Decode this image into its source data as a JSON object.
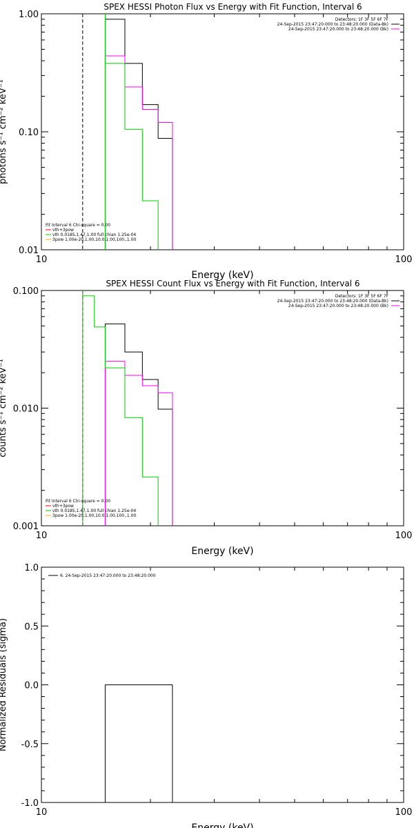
{
  "chart_data": [
    {
      "type": "line",
      "title": "SPEX HESSI Photon Flux vs Energy with Fit Function, Interval 6",
      "xlabel": "Energy (keV)",
      "ylabel": "photons s⁻¹ cm⁻² keV⁻¹",
      "xscale": "log",
      "yscale": "log",
      "xlim": [
        10,
        100
      ],
      "ylim": [
        0.01,
        1.0
      ],
      "xticks": [
        "10",
        "100"
      ],
      "yticks": [
        "0.01",
        "0.10",
        "1.00"
      ],
      "grid": false,
      "threshold_line_x": 13,
      "legend_top_right": [
        "Detectors: 1F 3F 5F 6F 7F",
        "24-Sep-2015 23:47:20.000 to 23:48:20.000 (Data-Bk)",
        "24-Sep-2015 23:47:20.000 to 23:48:20.000 (Bk)"
      ],
      "legend_bottom_left": [
        "Fit Interval 6   Chi-square = 0.00",
        "vth+3pow",
        "vth 0.0185,1.47,1.00  full chian 1.25e-04",
        "3pow 1.00e-20,1.00,10.0,1.00,100.,1.00"
      ],
      "series": [
        {
          "name": "24-Sep-2015 23:47:20.000 to 23:48:20.000 (Data-Bk)",
          "color": "#000000",
          "edges": [
            15,
            17,
            19,
            21,
            23
          ],
          "values": [
            0.9,
            0.38,
            0.17,
            0.088
          ]
        },
        {
          "name": "24-Sep-2015 23:47:20.000 to 23:48:20.000 (Bk)",
          "color": "#ff00ff",
          "edges": [
            15,
            17,
            19,
            21,
            23
          ],
          "values": [
            0.44,
            0.24,
            0.155,
            0.12
          ]
        },
        {
          "name": "vth 0.0185,1.47,1.00  full chian 1.25e-04",
          "color": "#00cc00",
          "edges": [
            15,
            17,
            19,
            21
          ],
          "values": [
            0.38,
            0.105,
            0.026
          ]
        }
      ],
      "green_spike_top": 1.05
    },
    {
      "type": "line",
      "title": "SPEX HESSI Count Flux vs Energy with Fit Function, Interval 6",
      "xlabel": "Energy (keV)",
      "ylabel": "counts s⁻¹ cm⁻² keV⁻¹",
      "xscale": "log",
      "yscale": "log",
      "xlim": [
        10,
        100
      ],
      "ylim": [
        0.001,
        0.1
      ],
      "xticks": [
        "10",
        "100"
      ],
      "yticks": [
        "0.001",
        "0.010",
        "0.100"
      ],
      "grid": false,
      "threshold_line_x": 13,
      "legend_top_right": [
        "Detectors: 1F 3F 5F 6F 7F",
        "24-Sep-2015 23:47:20.000 to 23:48:20.000 (Data-Bk)",
        "24-Sep-2015 23:47:20.000 to 23:48:20.000 (Bk)"
      ],
      "legend_bottom_left": [
        "Fit Interval 6   Chi-square = 0.00",
        "vth+3pow",
        "vth 0.0185,1.47,1.00  full chian 1.25e-04",
        "3pow 1.00e-20,1.00,10.0,1.00,100.,1.00"
      ],
      "series": [
        {
          "name": "24-Sep-2015 23:47:20.000 to 23:48:20.000 (Data-Bk)",
          "color": "#000000",
          "edges": [
            15,
            17,
            19,
            21,
            23
          ],
          "values": [
            0.052,
            0.03,
            0.0175,
            0.0098
          ]
        },
        {
          "name": "24-Sep-2015 23:47:20.000 to 23:48:20.000 (Bk)",
          "color": "#ff00ff",
          "edges": [
            15,
            17,
            19,
            21,
            23
          ],
          "values": [
            0.025,
            0.019,
            0.0155,
            0.0135
          ]
        },
        {
          "name": "vth 0.0185,1.47,1.00  full chian 1.25e-04",
          "color": "#00cc00",
          "edges": [
            13,
            14,
            15,
            17,
            19,
            21
          ],
          "values": [
            0.09,
            0.049,
            0.022,
            0.0083,
            0.0026
          ],
          "leading_top": 0.105
        }
      ]
    },
    {
      "type": "line",
      "title": "",
      "xlabel": "Energy (keV)",
      "ylabel": "Normalized Residuals (sigma)",
      "xscale": "log",
      "yscale": "linear",
      "xlim": [
        10,
        100
      ],
      "ylim": [
        -1.0,
        1.0
      ],
      "xticks": [
        "10",
        "100"
      ],
      "yticks": [
        "-1.0",
        "-0.5",
        "0.0",
        "0.5",
        "1.0"
      ],
      "grid": false,
      "legend_top_left": [
        "6. 24-Sep-2015 23:47:20.000 to 23:48:20.000"
      ],
      "series": [
        {
          "name": "6. 24-Sep-2015 23:47:20.000 to 23:48:20.000",
          "color": "#000000",
          "edges": [
            15,
            23
          ],
          "values": [
            0.0
          ]
        }
      ]
    }
  ]
}
